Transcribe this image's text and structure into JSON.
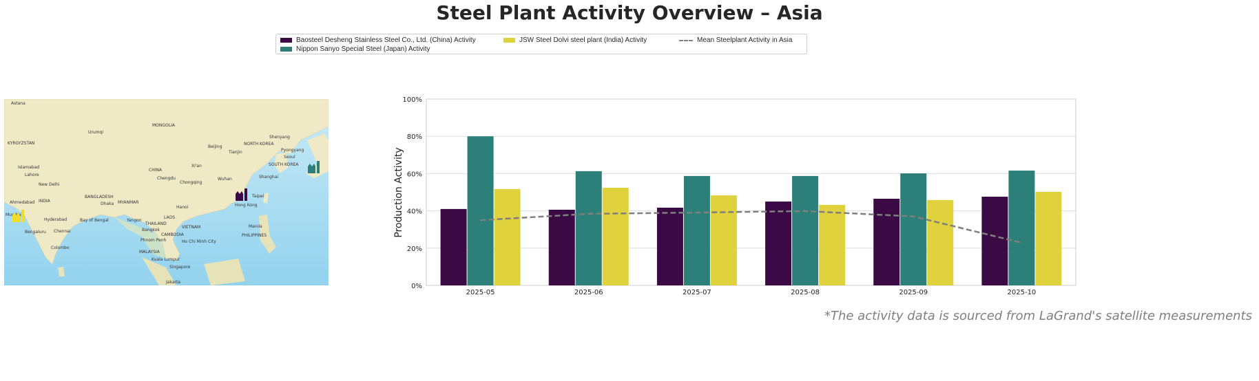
{
  "title": "Steel Plant Activity Overview – Asia",
  "footer": "*The activity data is sourced from LaGrand's satellite measurements",
  "legend": [
    {
      "label": "Baosteel Desheng Stainless Steel Co., Ltd. (China) Activity",
      "color": "#3b0a45",
      "type": "bar"
    },
    {
      "label": "Nippon Sanyo Special Steel (Japan) Activity",
      "color": "#2c8079",
      "type": "bar"
    },
    {
      "label": "JSW Steel Dolvi steel plant (India) Activity",
      "color": "#e0d23c",
      "type": "bar"
    },
    {
      "label": "Mean Steelplant Activity in Asia",
      "color": "#7f7f7f",
      "type": "dashed-line"
    }
  ],
  "map": {
    "labels": [
      "Astana",
      "Urumqi",
      "MONGOLIA",
      "KYRGYZSTAN",
      "Beijing",
      "Tianjin",
      "NORTH KOREA",
      "Shenyang",
      "Pyongyang",
      "Seoul",
      "SOUTH KOREA",
      "Islamabad",
      "Lahore",
      "New Delhi",
      "CHINA",
      "Xi'an",
      "Chengdu",
      "Chongqing",
      "Wuhan",
      "Shanghai",
      "Taipei",
      "Hong Kong",
      "INDIA",
      "BANGLADESH",
      "Dhaka",
      "MYANMAR",
      "Ahmedabad",
      "Mumbai",
      "Hyderabad",
      "Bay of Bengal",
      "Yangon",
      "Hanoi",
      "THAILAND",
      "LAOS",
      "VIETNAM",
      "Bangkok",
      "CAMBODIA",
      "Phnom Penh",
      "Ho Chi Minh City",
      "Manila",
      "PHILIPPINES",
      "Bengaluru",
      "Chennai",
      "Colombo",
      "MALAYSIA",
      "Kuala Lumpur",
      "Singapore",
      "Jakarta"
    ],
    "markers": [
      {
        "plant": "Baosteel Desheng",
        "color": "#3b0a45",
        "icon": "factory-icon"
      },
      {
        "plant": "Nippon Sanyo",
        "color": "#2c8079",
        "icon": "factory-icon"
      },
      {
        "plant": "JSW Steel Dolvi",
        "color": "#f2dc2a",
        "icon": "factory-icon"
      }
    ]
  },
  "chart_data": {
    "type": "bar",
    "title": "",
    "xlabel": "",
    "ylabel": "Production Activity",
    "ylim": [
      0,
      100
    ],
    "yticks": [
      "0%",
      "20%",
      "40%",
      "60%",
      "80%",
      "100%"
    ],
    "grid": true,
    "legend_placement": "top-center",
    "categories": [
      "2025-05",
      "2025-06",
      "2025-07",
      "2025-08",
      "2025-09",
      "2025-10"
    ],
    "series": [
      {
        "name": "Baosteel Desheng Stainless Steel Co., Ltd. (China) Activity",
        "color": "#3b0a45",
        "values": [
          41,
          40.6,
          41.7,
          45,
          46.5,
          47.6
        ]
      },
      {
        "name": "Nippon Sanyo Special Steel (Japan) Activity",
        "color": "#2c8079",
        "values": [
          80,
          61.3,
          58.7,
          58.7,
          60.1,
          61.6
        ]
      },
      {
        "name": "JSW Steel Dolvi steel plant (India) Activity",
        "color": "#e0d23c",
        "values": [
          51.7,
          52.4,
          48.3,
          43.2,
          45.8,
          50.2
        ]
      }
    ],
    "line": {
      "name": "Mean Steelplant Activity in Asia",
      "color": "#7f7f7f",
      "values": [
        35,
        38.4,
        39.1,
        39.9,
        37,
        22.9
      ]
    }
  }
}
